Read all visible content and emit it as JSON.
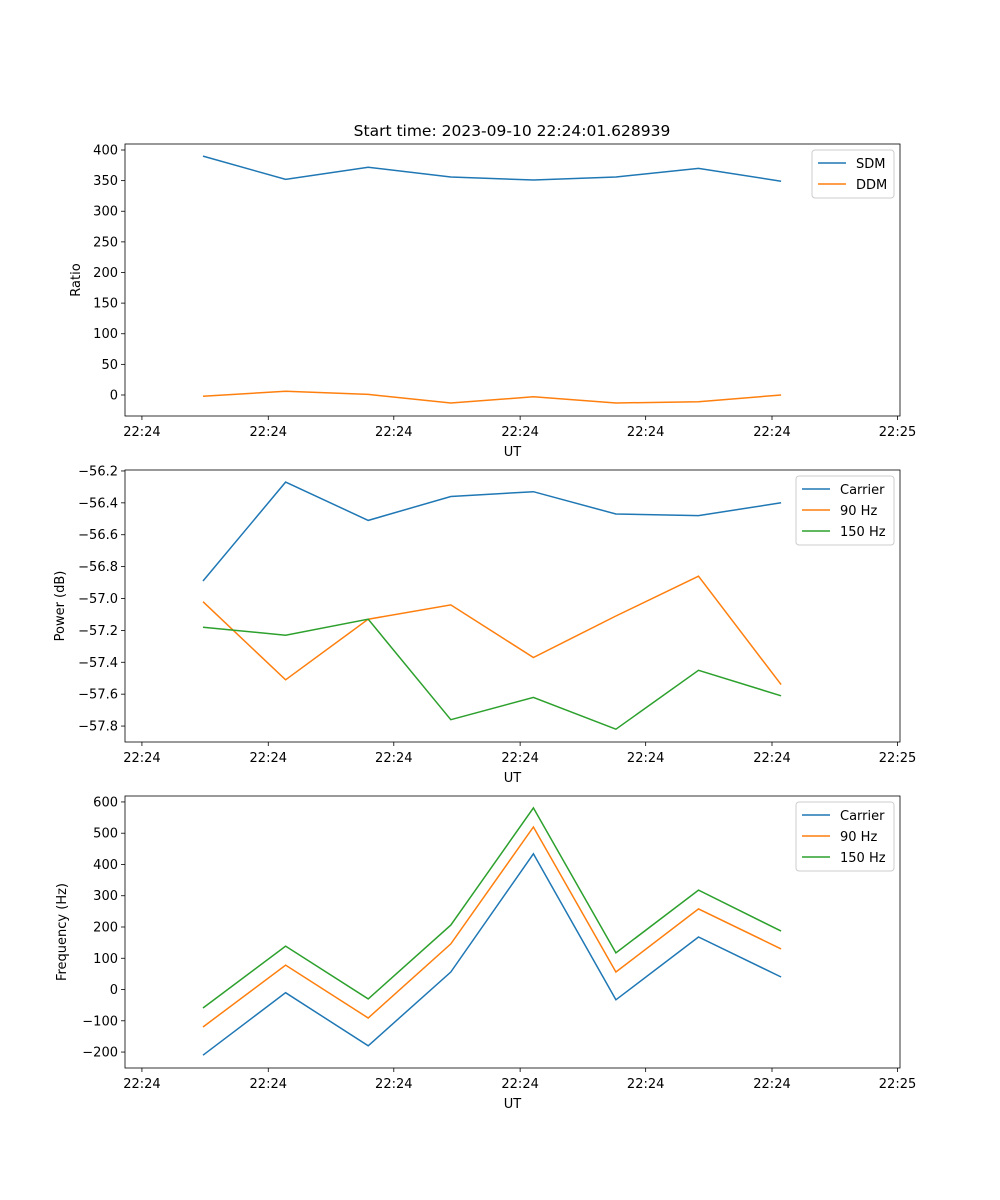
{
  "title": "Start time: 2023-09-10 22:24:01.628939",
  "colors": {
    "c0": "#1f77b4",
    "c1": "#ff7f0e",
    "c2": "#2ca02c"
  },
  "chart_data": [
    {
      "type": "line",
      "title": "Start time: 2023-09-10 22:24:01.628939",
      "xlabel": "UT",
      "ylabel": "Ratio",
      "x": [
        0,
        1,
        2,
        3,
        4,
        5,
        6,
        7
      ],
      "xlim": [
        -0.945,
        8.44
      ],
      "xticks": [
        -0.74,
        0.79,
        2.31,
        3.84,
        5.36,
        6.89,
        8.41
      ],
      "xtick_labels": [
        "22:24",
        "22:24",
        "22:24",
        "22:24",
        "22:24",
        "22:24",
        "22:25"
      ],
      "ylim": [
        -34.3,
        409.8
      ],
      "yticks": [
        0,
        50,
        100,
        150,
        200,
        250,
        300,
        350,
        400
      ],
      "ytick_labels": [
        "0",
        "50",
        "100",
        "150",
        "200",
        "250",
        "300",
        "350",
        "400"
      ],
      "legend": "top-right",
      "series": [
        {
          "name": "SDM",
          "color": "#1f77b4",
          "values": [
            390,
            352,
            372,
            356,
            351,
            356,
            370,
            349
          ]
        },
        {
          "name": "DDM",
          "color": "#ff7f0e",
          "values": [
            -2,
            6,
            1,
            -13,
            -3,
            -13,
            -11,
            0
          ]
        }
      ]
    },
    {
      "type": "line",
      "xlabel": "UT",
      "ylabel": "Power (dB)",
      "x": [
        0,
        1,
        2,
        3,
        4,
        5,
        6,
        7
      ],
      "xlim": [
        -0.945,
        8.44
      ],
      "xticks": [
        -0.74,
        0.79,
        2.31,
        3.84,
        5.36,
        6.89,
        8.41
      ],
      "xtick_labels": [
        "22:24",
        "22:24",
        "22:24",
        "22:24",
        "22:24",
        "22:24",
        "22:25"
      ],
      "ylim": [
        -57.9,
        -56.194
      ],
      "yticks": [
        -57.8,
        -57.6,
        -57.4,
        -57.2,
        -57.0,
        -56.8,
        -56.6,
        -56.4,
        -56.2
      ],
      "ytick_labels": [
        "−57.8",
        "−57.6",
        "−57.4",
        "−57.2",
        "−57.0",
        "−56.8",
        "−56.6",
        "−56.4",
        "−56.2"
      ],
      "legend": "top-right",
      "series": [
        {
          "name": "Carrier",
          "color": "#1f77b4",
          "values": [
            -56.89,
            -56.27,
            -56.51,
            -56.36,
            -56.33,
            -56.47,
            -56.48,
            -56.4
          ]
        },
        {
          "name": "90 Hz",
          "color": "#ff7f0e",
          "values": [
            -57.02,
            -57.51,
            -57.13,
            -57.04,
            -57.37,
            -57.11,
            -56.86,
            -57.54
          ]
        },
        {
          "name": "150 Hz",
          "color": "#2ca02c",
          "values": [
            -57.18,
            -57.23,
            -57.13,
            -57.76,
            -57.62,
            -57.82,
            -57.45,
            -57.61
          ]
        }
      ]
    },
    {
      "type": "line",
      "xlabel": "UT",
      "ylabel": "Frequency (Hz)",
      "x": [
        0,
        1,
        2,
        3,
        4,
        5,
        6,
        7
      ],
      "xlim": [
        -0.945,
        8.44
      ],
      "xticks": [
        -0.74,
        0.79,
        2.31,
        3.84,
        5.36,
        6.89,
        8.41
      ],
      "xtick_labels": [
        "22:24",
        "22:24",
        "22:24",
        "22:24",
        "22:24",
        "22:24",
        "22:25"
      ],
      "ylim": [
        -251,
        619
      ],
      "yticks": [
        -200,
        -100,
        0,
        100,
        200,
        300,
        400,
        500,
        600
      ],
      "ytick_labels": [
        "−200",
        "−100",
        "0",
        "100",
        "200",
        "300",
        "400",
        "500",
        "600"
      ],
      "legend": "top-right",
      "series": [
        {
          "name": "Carrier",
          "color": "#1f77b4",
          "values": [
            -210,
            -10,
            -180,
            56,
            434,
            -33,
            168,
            40
          ]
        },
        {
          "name": "90 Hz",
          "color": "#ff7f0e",
          "values": [
            -120,
            78,
            -91,
            146,
            520,
            56,
            258,
            130
          ]
        },
        {
          "name": "150 Hz",
          "color": "#2ca02c",
          "values": [
            -59,
            139,
            -30,
            206,
            581,
            117,
            318,
            187
          ]
        }
      ]
    }
  ]
}
